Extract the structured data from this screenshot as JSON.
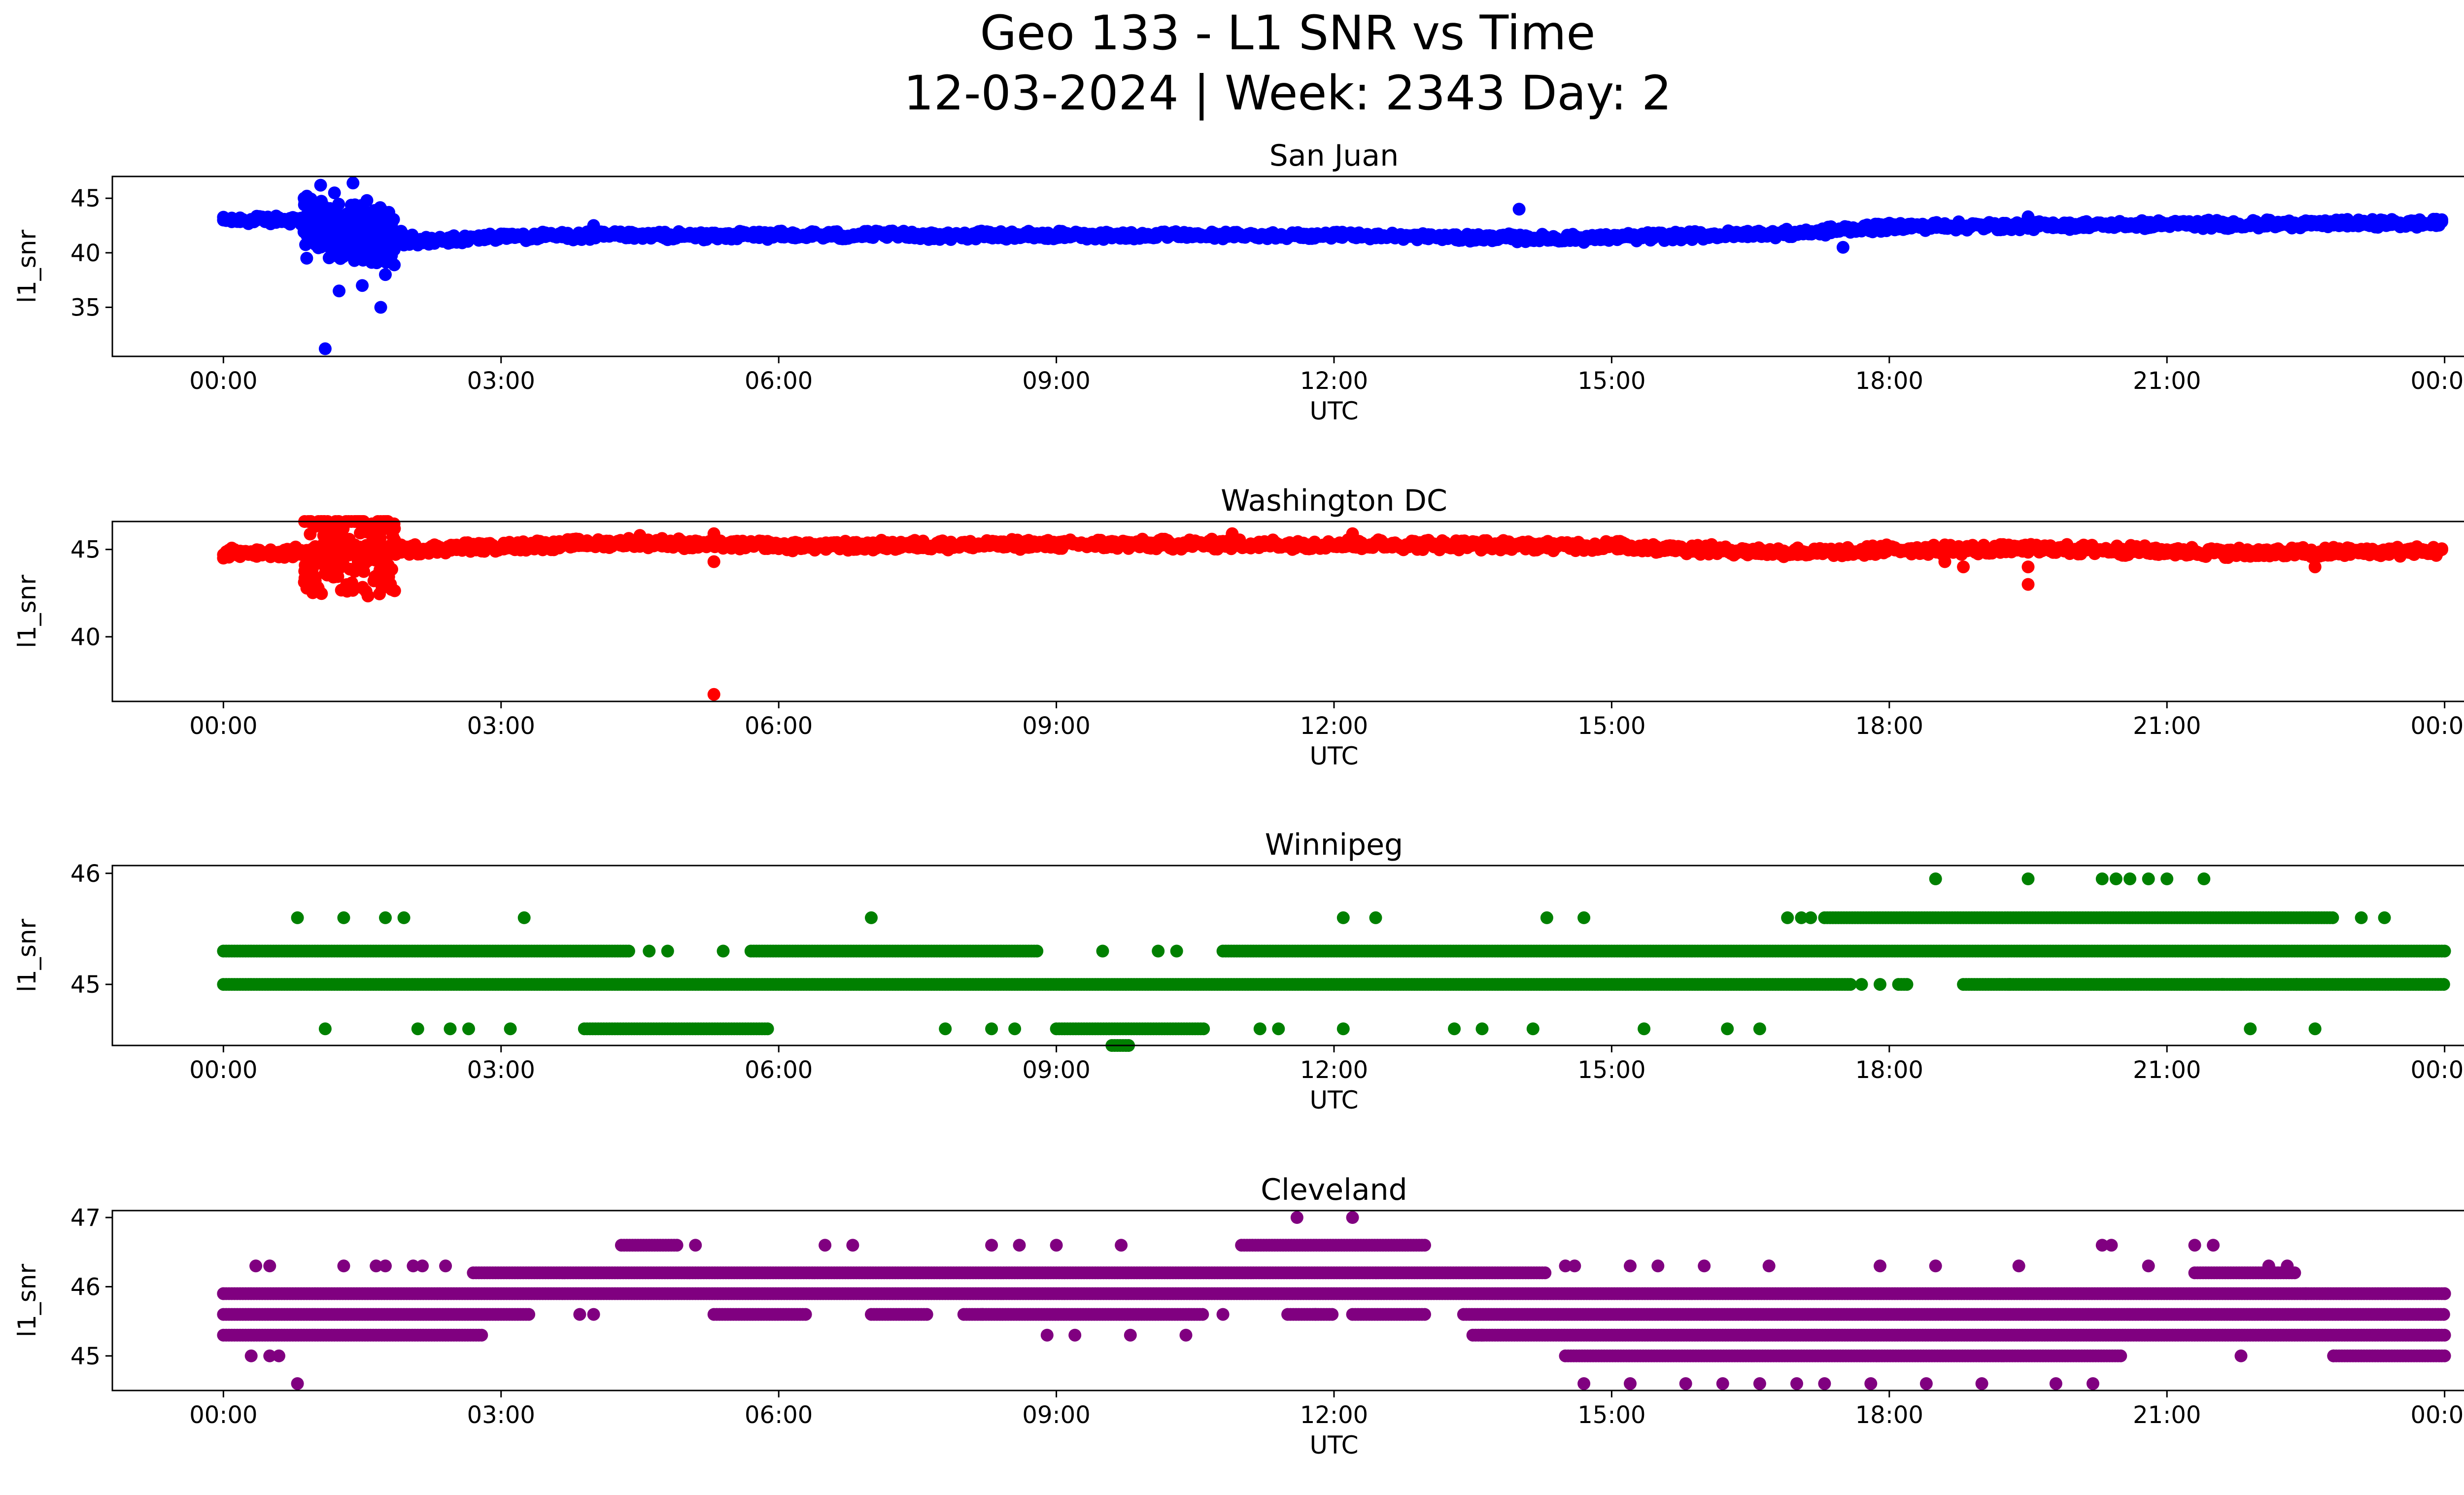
{
  "figure": {
    "title_line1": "Geo 133 - L1 SNR vs Time",
    "title_line2": "12-03-2024 | Week: 2343 Day: 2"
  },
  "chart_data": [
    {
      "type": "scatter",
      "title": "San Juan",
      "xlabel": "UTC",
      "ylabel": "l1_snr",
      "color": "#0000ff",
      "xlim_hours": [
        -1.2,
        25.2
      ],
      "ylim": [
        30.5,
        47.0
      ],
      "yticks": [
        35,
        40,
        45
      ],
      "xticks": [
        "00:00",
        "03:00",
        "06:00",
        "09:00",
        "12:00",
        "15:00",
        "18:00",
        "21:00",
        "00:00"
      ],
      "band": [
        [
          0.0,
          43.0,
          0.3
        ],
        [
          0.8,
          43.0,
          0.5
        ],
        [
          1.05,
          42.2,
          1.8
        ],
        [
          1.8,
          41.5,
          1.0
        ],
        [
          2.2,
          41.0,
          0.4
        ],
        [
          3.0,
          41.5,
          0.4
        ],
        [
          6.0,
          41.6,
          0.4
        ],
        [
          9.0,
          41.6,
          0.4
        ],
        [
          12.0,
          41.6,
          0.3
        ],
        [
          14.5,
          41.3,
          0.4
        ],
        [
          15.5,
          41.5,
          0.4
        ],
        [
          17.0,
          41.8,
          0.4
        ],
        [
          18.0,
          42.4,
          0.4
        ],
        [
          21.0,
          42.6,
          0.4
        ],
        [
          24.0,
          42.7,
          0.4
        ]
      ],
      "outliers": [
        [
          1.05,
          46.2
        ],
        [
          1.25,
          36.5
        ],
        [
          1.1,
          31.2
        ],
        [
          1.4,
          46.4
        ],
        [
          1.7,
          35.0
        ],
        [
          1.5,
          37.0
        ],
        [
          0.9,
          39.5
        ],
        [
          1.55,
          44.8
        ],
        [
          1.2,
          45.5
        ],
        [
          1.75,
          38.0
        ],
        [
          14.0,
          44.0
        ],
        [
          17.5,
          40.5
        ],
        [
          4.0,
          42.5
        ],
        [
          19.5,
          43.3
        ]
      ]
    },
    {
      "type": "scatter",
      "title": "Washington DC",
      "xlabel": "UTC",
      "ylabel": "l1_snr",
      "color": "#ff0000",
      "xlim_hours": [
        -1.2,
        25.2
      ],
      "ylim": [
        36.3,
        46.6
      ],
      "yticks": [
        40,
        45
      ],
      "xticks": [
        "00:00",
        "03:00",
        "06:00",
        "09:00",
        "12:00",
        "15:00",
        "18:00",
        "21:00",
        "00:00"
      ],
      "band": [
        [
          0.0,
          44.8,
          0.3
        ],
        [
          1.5,
          44.9,
          0.3
        ],
        [
          3.0,
          45.2,
          0.3
        ],
        [
          4.5,
          45.4,
          0.3
        ],
        [
          6.0,
          45.2,
          0.3
        ],
        [
          9.0,
          45.3,
          0.3
        ],
        [
          12.0,
          45.3,
          0.3
        ],
        [
          15.0,
          45.2,
          0.3
        ],
        [
          16.5,
          44.9,
          0.3
        ],
        [
          17.5,
          44.8,
          0.3
        ],
        [
          18.0,
          45.0,
          0.3
        ],
        [
          20.0,
          45.0,
          0.3
        ],
        [
          22.0,
          44.8,
          0.3
        ],
        [
          24.0,
          44.9,
          0.3
        ]
      ],
      "outliers": [
        [
          5.3,
          36.7
        ],
        [
          5.3,
          44.3
        ],
        [
          19.5,
          43.0
        ],
        [
          19.5,
          44.0
        ],
        [
          18.8,
          44.0
        ],
        [
          4.5,
          45.8
        ],
        [
          5.3,
          45.9
        ],
        [
          10.9,
          45.9
        ],
        [
          12.2,
          45.9
        ],
        [
          18.6,
          44.3
        ],
        [
          22.6,
          44.0
        ]
      ]
    },
    {
      "type": "scatter",
      "title": "Winnipeg",
      "xlabel": "UTC",
      "ylabel": "l1_snr",
      "color": "#008000",
      "xlim_hours": [
        -1.2,
        25.2
      ],
      "ylim": [
        44.45,
        46.07
      ],
      "yticks": [
        45,
        46
      ],
      "xticks": [
        "00:00",
        "03:00",
        "06:00",
        "09:00",
        "12:00",
        "15:00",
        "18:00",
        "21:00",
        "00:00"
      ],
      "levels": [
        {
          "y": 45.0,
          "segments": [
            [
              0,
              17.6
            ],
            [
              18.1,
              18.2
            ],
            [
              18.8,
              24
            ]
          ]
        },
        {
          "y": 45.3,
          "segments": [
            [
              0,
              4.4
            ],
            [
              5.7,
              8.8
            ],
            [
              10.8,
              24
            ]
          ]
        },
        {
          "y": 45.6,
          "segments": [
            [
              17.3,
              22.8
            ]
          ]
        },
        {
          "y": 44.6,
          "segments": [
            [
              3.9,
              5.9
            ],
            [
              9.0,
              10.6
            ]
          ]
        },
        {
          "y": 44.45,
          "segments": [
            [
              9.6,
              9.8
            ]
          ]
        }
      ],
      "points": [
        [
          0.8,
          45.6
        ],
        [
          1.3,
          45.6
        ],
        [
          1.75,
          45.6
        ],
        [
          1.95,
          45.6
        ],
        [
          3.25,
          45.6
        ],
        [
          7.0,
          45.6
        ],
        [
          12.1,
          45.6
        ],
        [
          12.45,
          45.6
        ],
        [
          14.3,
          45.6
        ],
        [
          14.7,
          45.6
        ],
        [
          16.9,
          45.6
        ],
        [
          17.05,
          45.6
        ],
        [
          17.15,
          45.6
        ],
        [
          23.1,
          45.6
        ],
        [
          23.35,
          45.6
        ],
        [
          18.5,
          45.95
        ],
        [
          19.5,
          45.95
        ],
        [
          20.3,
          45.95
        ],
        [
          20.45,
          45.95
        ],
        [
          20.6,
          45.95
        ],
        [
          20.8,
          45.95
        ],
        [
          21.0,
          45.95
        ],
        [
          21.4,
          45.95
        ],
        [
          1.1,
          44.6
        ],
        [
          2.1,
          44.6
        ],
        [
          2.45,
          44.6
        ],
        [
          2.65,
          44.6
        ],
        [
          3.1,
          44.6
        ],
        [
          7.8,
          44.6
        ],
        [
          8.3,
          44.6
        ],
        [
          8.55,
          44.6
        ],
        [
          11.2,
          44.6
        ],
        [
          11.4,
          44.6
        ],
        [
          12.1,
          44.6
        ],
        [
          13.3,
          44.6
        ],
        [
          13.6,
          44.6
        ],
        [
          14.15,
          44.6
        ],
        [
          15.35,
          44.6
        ],
        [
          16.25,
          44.6
        ],
        [
          16.6,
          44.6
        ],
        [
          21.9,
          44.6
        ],
        [
          22.6,
          44.6
        ],
        [
          4.6,
          45.3
        ],
        [
          4.8,
          45.3
        ],
        [
          5.4,
          45.3
        ],
        [
          9.5,
          45.3
        ],
        [
          10.1,
          45.3
        ],
        [
          10.3,
          45.3
        ],
        [
          21.6,
          45.0
        ],
        [
          21.8,
          45.0
        ],
        [
          22.4,
          45.0
        ],
        [
          19.3,
          45.0
        ],
        [
          17.9,
          45.0
        ],
        [
          17.7,
          45.0
        ]
      ]
    },
    {
      "type": "scatter",
      "title": "Cleveland",
      "xlabel": "UTC",
      "ylabel": "l1_snr",
      "color": "#800080",
      "xlim_hours": [
        -1.2,
        25.2
      ],
      "ylim": [
        44.5,
        47.1
      ],
      "yticks": [
        45,
        46,
        47
      ],
      "xticks": [
        "00:00",
        "03:00",
        "06:00",
        "09:00",
        "12:00",
        "15:00",
        "18:00",
        "21:00",
        "00:00"
      ],
      "levels": [
        {
          "y": 45.3,
          "segments": [
            [
              0,
              2.8
            ],
            [
              13.5,
              24
            ]
          ]
        },
        {
          "y": 45.6,
          "segments": [
            [
              0,
              3.3
            ],
            [
              5.3,
              6.3
            ],
            [
              7.0,
              7.6
            ],
            [
              8.0,
              10.6
            ],
            [
              11.5,
              12.0
            ],
            [
              12.2,
              13.0
            ],
            [
              13.4,
              24
            ]
          ]
        },
        {
          "y": 45.9,
          "segments": [
            [
              0,
              24
            ]
          ]
        },
        {
          "y": 46.2,
          "segments": [
            [
              2.7,
              14.3
            ],
            [
              21.3,
              22.4
            ]
          ]
        },
        {
          "y": 46.6,
          "segments": [
            [
              4.3,
              4.9
            ],
            [
              11.0,
              13.0
            ]
          ]
        },
        {
          "y": 45.0,
          "segments": [
            [
              14.5,
              20.5
            ],
            [
              22.8,
              24
            ]
          ]
        }
      ],
      "points": [
        [
          0.0,
          45.9
        ],
        [
          0.35,
          46.3
        ],
        [
          0.5,
          46.3
        ],
        [
          0.3,
          45.0
        ],
        [
          0.5,
          45.0
        ],
        [
          0.6,
          45.0
        ],
        [
          0.8,
          44.6
        ],
        [
          1.3,
          46.3
        ],
        [
          1.65,
          46.3
        ],
        [
          1.75,
          46.3
        ],
        [
          2.05,
          46.3
        ],
        [
          2.15,
          46.3
        ],
        [
          2.4,
          46.3
        ],
        [
          3.85,
          45.6
        ],
        [
          4.0,
          45.6
        ],
        [
          5.1,
          46.6
        ],
        [
          6.5,
          46.6
        ],
        [
          6.8,
          46.6
        ],
        [
          8.3,
          46.6
        ],
        [
          8.6,
          46.6
        ],
        [
          9.0,
          46.6
        ],
        [
          9.7,
          46.6
        ],
        [
          8.2,
          45.6
        ],
        [
          8.9,
          45.3
        ],
        [
          9.2,
          45.3
        ],
        [
          9.8,
          45.3
        ],
        [
          10.4,
          45.3
        ],
        [
          10.8,
          45.6
        ],
        [
          11.6,
          47.0
        ],
        [
          12.2,
          47.0
        ],
        [
          11.8,
          45.6
        ],
        [
          13.6,
          45.3
        ],
        [
          14.5,
          46.3
        ],
        [
          14.6,
          46.3
        ],
        [
          15.2,
          46.3
        ],
        [
          15.5,
          46.3
        ],
        [
          16.0,
          46.3
        ],
        [
          16.7,
          46.3
        ],
        [
          17.9,
          46.3
        ],
        [
          18.5,
          46.3
        ],
        [
          19.4,
          46.3
        ],
        [
          20.8,
          46.3
        ],
        [
          22.1,
          46.3
        ],
        [
          22.3,
          46.3
        ],
        [
          20.3,
          46.6
        ],
        [
          20.4,
          46.6
        ],
        [
          21.3,
          46.6
        ],
        [
          21.5,
          46.6
        ],
        [
          14.7,
          44.6
        ],
        [
          15.2,
          44.6
        ],
        [
          15.8,
          44.6
        ],
        [
          16.2,
          44.6
        ],
        [
          16.6,
          44.6
        ],
        [
          17.0,
          44.6
        ],
        [
          17.3,
          44.6
        ],
        [
          17.8,
          44.6
        ],
        [
          18.4,
          44.6
        ],
        [
          19.0,
          44.6
        ],
        [
          19.8,
          44.6
        ],
        [
          20.2,
          44.6
        ],
        [
          21.8,
          45.0
        ],
        [
          24.0,
          45.9
        ],
        [
          22.5,
          45.9
        ],
        [
          22.8,
          45.0
        ]
      ]
    }
  ]
}
